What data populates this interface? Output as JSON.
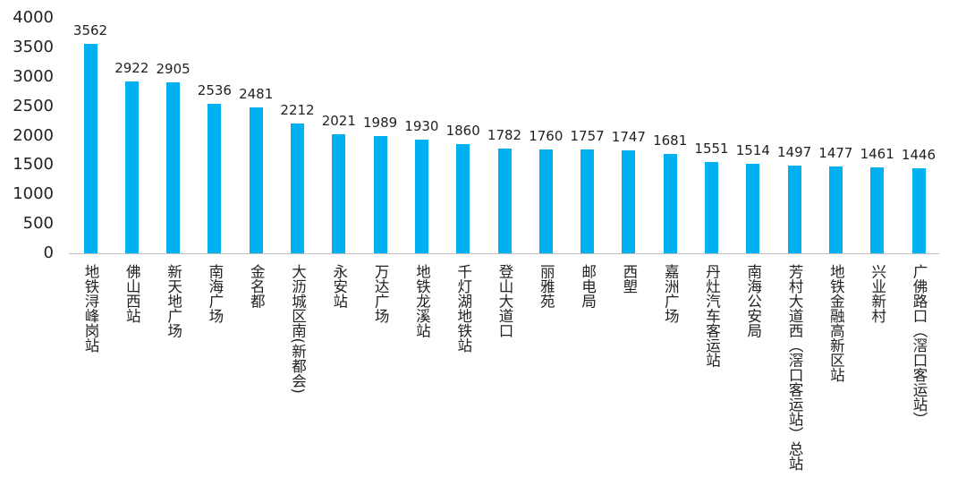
{
  "chart_data": {
    "type": "bar",
    "categories": [
      "地铁浔峰岗站",
      "佛山西站",
      "新天地广场",
      "南海广场",
      "金名都",
      "大沥城区南(新都会)",
      "永安站",
      "万达广场",
      "地铁龙溪站",
      "千灯湖地铁站",
      "登山大道口",
      "丽雅苑",
      "邮电局",
      "西塱",
      "嘉洲广场",
      "丹灶汽车客运站",
      "南海公安局",
      "芳村大道西（滘口客运站）总站",
      "地铁金融高新区站",
      "兴业新村",
      "广佛路口（滘口客运站）"
    ],
    "values": [
      3562,
      2922,
      2905,
      2536,
      2481,
      2212,
      2021,
      1989,
      1930,
      1860,
      1782,
      1760,
      1757,
      1747,
      1681,
      1551,
      1514,
      1497,
      1477,
      1461,
      1446
    ],
    "yticks": [
      0,
      500,
      1000,
      1500,
      2000,
      2500,
      3000,
      3500,
      4000
    ],
    "ylim": [
      0,
      4000
    ],
    "title": "",
    "xlabel": "",
    "ylabel": "",
    "grid": false,
    "bar_color": "#00B0F0",
    "data_labels": true
  }
}
